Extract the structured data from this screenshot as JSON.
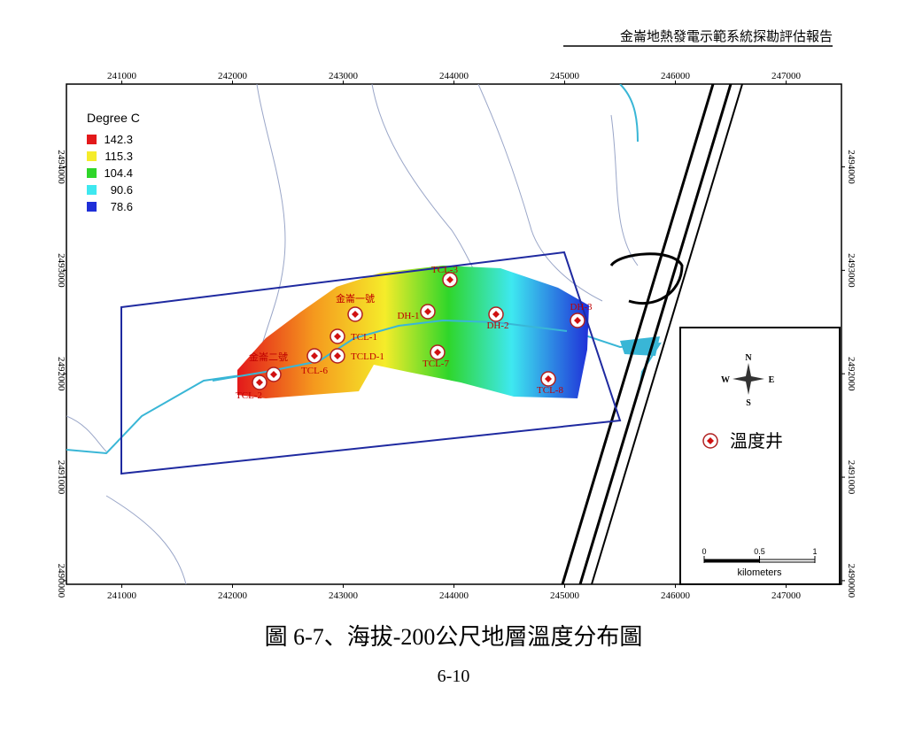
{
  "header": {
    "title": "金崙地熱發電示範系統探勘評估報告"
  },
  "map": {
    "xticks": [
      241000,
      242000,
      243000,
      244000,
      245000,
      246000,
      247000
    ],
    "yticks": [
      2490000,
      2491000,
      2492000,
      2493000,
      2494000
    ],
    "xlim": [
      240500,
      247500
    ],
    "ylim": [
      2489965,
      2494800
    ],
    "legend": {
      "title": "Degree C",
      "items": [
        {
          "value": 142.3,
          "color": "#e3191b"
        },
        {
          "value": 115.3,
          "color": "#f5ec2a"
        },
        {
          "value": 104.4,
          "color": "#2fd62a"
        },
        {
          "value": 90.6,
          "color": "#3ee8f0"
        },
        {
          "value": 78.6,
          "color": "#1f2fd8"
        }
      ]
    },
    "wells": [
      "TCL-3",
      "金崙一號",
      "DH-1",
      "DH-2",
      "DH-3",
      "TCL-1",
      "TCL-6",
      "TCLD-1",
      "TCL-7",
      "TCL-8",
      "金崙二號",
      "TCL-2"
    ],
    "inset": {
      "compass": {
        "n": "N",
        "s": "S",
        "e": "E",
        "w": "W"
      },
      "key": "溫度井",
      "scale": {
        "ticks": [
          0,
          0.5,
          1
        ],
        "unit": "kilometers"
      }
    }
  },
  "caption": "圖 6-7、海拔-200公尺地層溫度分布圖",
  "page_number": "6-10"
}
